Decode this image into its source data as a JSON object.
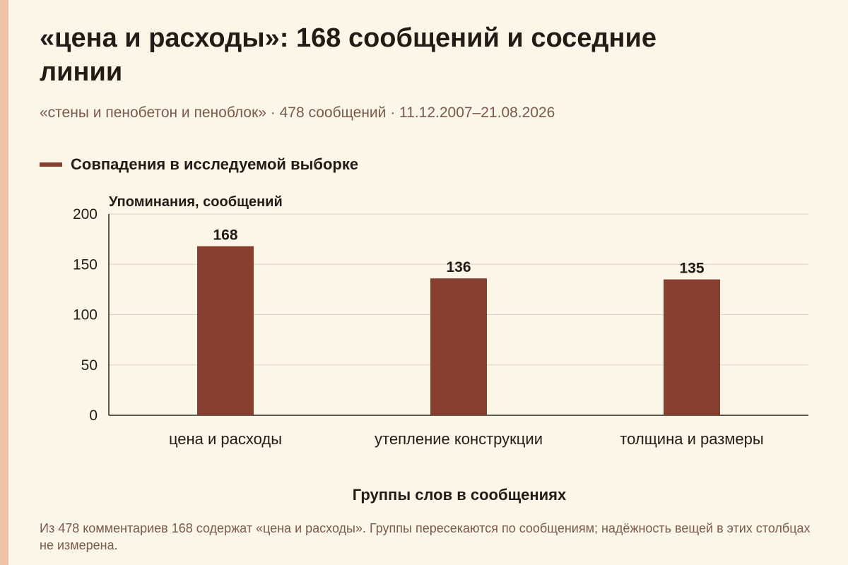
{
  "header": {
    "title": "«цена и расходы»: 168 сообщений и соседние линии",
    "subtitle": "«стены и пенобетон и пеноблок» · 478 сообщений · 11.12.2007–21.08.2026"
  },
  "legend": {
    "label": "Совпадения в исследуемой выборке",
    "color": "#873f30"
  },
  "chart_data": {
    "type": "bar",
    "categories": [
      "цена и расходы",
      "утепление конструкции",
      "толщина и размеры"
    ],
    "series": [
      {
        "name": "Совпадения в исследуемой выборке",
        "values": [
          168,
          136,
          135
        ],
        "color": "#873f30"
      }
    ],
    "data_labels": [
      "168",
      "136",
      "135"
    ],
    "xlabel": "Группы слов в сообщениях",
    "ylabel": "Упоминания, сообщений",
    "ylim": [
      0,
      200
    ],
    "yticks": [
      0,
      50,
      100,
      150,
      200
    ],
    "grid": true,
    "legend_position": "top-left"
  },
  "footnote": "Из 478 комментариев 168 содержат «цена и расходы». Группы пересекаются по сообщениям; надёжность вещей в этих столбцах не измерена."
}
